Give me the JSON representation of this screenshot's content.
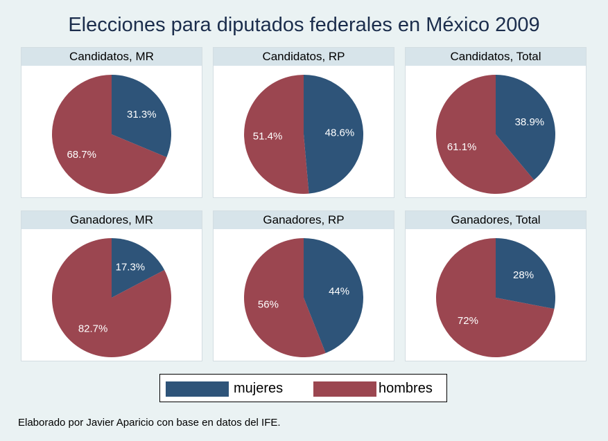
{
  "colors": {
    "mujeres": "#2e5479",
    "hombres": "#9b4650",
    "background": "#eaf2f3",
    "strip": "#d7e4ea"
  },
  "title": "Elecciones para diputados federales en México 2009",
  "legend": {
    "mujeres": "mujeres",
    "hombres": "hombres"
  },
  "footnote": "Elaborado por Javier Aparicio con base en datos del IFE.",
  "chart_data": [
    {
      "type": "pie",
      "title": "Candidatos, MR",
      "categories": [
        "mujeres",
        "hombres"
      ],
      "values": [
        31.3,
        68.7
      ],
      "labels": [
        "31.3%",
        "68.7%"
      ]
    },
    {
      "type": "pie",
      "title": "Candidatos, RP",
      "categories": [
        "mujeres",
        "hombres"
      ],
      "values": [
        48.6,
        51.4
      ],
      "labels": [
        "48.6%",
        "51.4%"
      ]
    },
    {
      "type": "pie",
      "title": "Candidatos, Total",
      "categories": [
        "mujeres",
        "hombres"
      ],
      "values": [
        38.9,
        61.1
      ],
      "labels": [
        "38.9%",
        "61.1%"
      ]
    },
    {
      "type": "pie",
      "title": "Ganadores, MR",
      "categories": [
        "mujeres",
        "hombres"
      ],
      "values": [
        17.3,
        82.7
      ],
      "labels": [
        "17.3%",
        "82.7%"
      ]
    },
    {
      "type": "pie",
      "title": "Ganadores, RP",
      "categories": [
        "mujeres",
        "hombres"
      ],
      "values": [
        44,
        56
      ],
      "labels": [
        "44%",
        "56%"
      ]
    },
    {
      "type": "pie",
      "title": "Ganadores, Total",
      "categories": [
        "mujeres",
        "hombres"
      ],
      "values": [
        28,
        72
      ],
      "labels": [
        "28%",
        "72%"
      ]
    }
  ]
}
